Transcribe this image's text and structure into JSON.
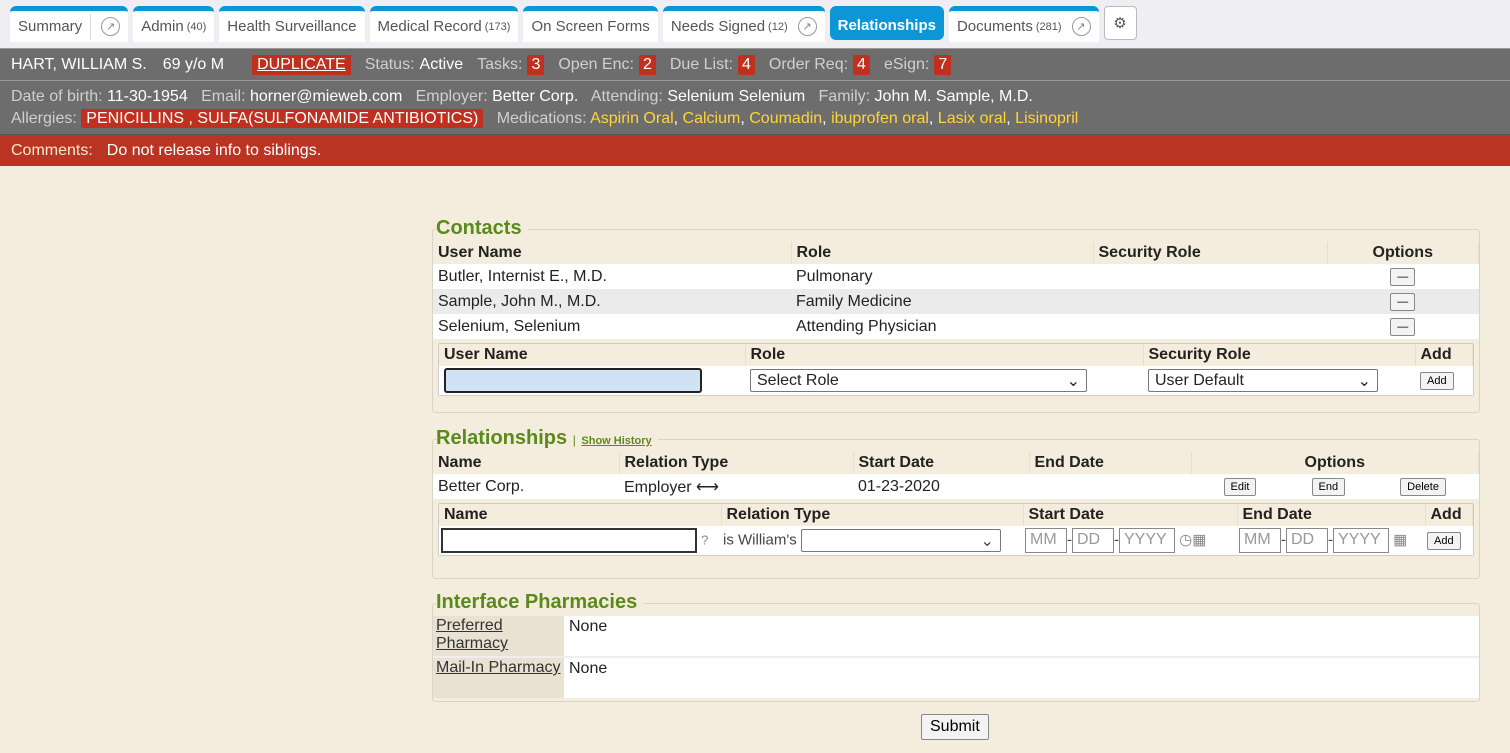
{
  "tabs": [
    {
      "label": "Summary",
      "count": ""
    },
    {
      "label": "Admin",
      "count": "(40)"
    },
    {
      "label": "Health Surveillance",
      "count": ""
    },
    {
      "label": "Medical Record",
      "count": "(173)"
    },
    {
      "label": "On Screen Forms",
      "count": ""
    },
    {
      "label": "Needs Signed",
      "count": "(12)"
    },
    {
      "label": "Relationships",
      "count": ""
    },
    {
      "label": "Documents",
      "count": "(281)"
    }
  ],
  "patient": {
    "name": "HART, WILLIAM S.",
    "age_sex": "69 y/o M",
    "duplicate": "DUPLICATE",
    "status_label": "Status:",
    "status": "Active",
    "tasks_label": "Tasks:",
    "tasks": "3",
    "open_enc_label": "Open Enc:",
    "open_enc": "2",
    "due_list_label": "Due List:",
    "due_list": "4",
    "order_req_label": "Order Req:",
    "order_req": "4",
    "esign_label": "eSign:",
    "esign": "7",
    "dob_label": "Date of birth:",
    "dob": "11-30-1954",
    "email_label": "Email:",
    "email": "horner@mieweb.com",
    "employer_label": "Employer:",
    "employer": "Better Corp.",
    "attending_label": "Attending:",
    "attending": "Selenium Selenium",
    "family_label": "Family:",
    "family": "John M. Sample, M.D.",
    "allergies_label": "Allergies:",
    "allergies": "PENICILLINS , SULFA(SULFONAMIDE ANTIBIOTICS)",
    "medications_label": "Medications:",
    "medications": [
      "Aspirin Oral",
      "Calcium",
      "Coumadin",
      "ibuprofen oral",
      "Lasix oral",
      "Lisinopril"
    ],
    "comments_label": "Comments:",
    "comments": "Do not release info to siblings."
  },
  "contacts": {
    "title": "Contacts",
    "headers": [
      "User Name",
      "Role",
      "Security Role",
      "Options"
    ],
    "rows": [
      {
        "name": "Butler, Internist E., M.D.",
        "role": "Pulmonary",
        "security": ""
      },
      {
        "name": "Sample, John M., M.D.",
        "role": "Family Medicine",
        "security": ""
      },
      {
        "name": "Selenium, Selenium",
        "role": "Attending Physician",
        "security": ""
      }
    ],
    "remove_label": "—",
    "add_headers": [
      "User Name",
      "Role",
      "Security Role",
      "Add"
    ],
    "role_select": "Select Role",
    "security_select": "User Default",
    "add_button": "Add"
  },
  "relationships": {
    "title": "Relationships",
    "show_history": "Show History",
    "headers": [
      "Name",
      "Relation Type",
      "Start Date",
      "End Date",
      "Options"
    ],
    "rows": [
      {
        "name": "Better Corp.",
        "type": "Employer",
        "start": "01-23-2020",
        "end": ""
      }
    ],
    "edit": "Edit",
    "end": "End",
    "delete": "Delete",
    "add_headers": [
      "Name",
      "Relation Type",
      "Start Date",
      "End Date",
      "Add"
    ],
    "is_label": "is William's",
    "mm": "MM",
    "dd": "DD",
    "yyyy": "YYYY",
    "add_button": "Add"
  },
  "pharmacies": {
    "title": "Interface Pharmacies",
    "rows": [
      {
        "label": "Preferred Pharmacy",
        "value": "None"
      },
      {
        "label": "Mail-In Pharmacy",
        "value": "None"
      }
    ]
  },
  "submit": "Submit"
}
